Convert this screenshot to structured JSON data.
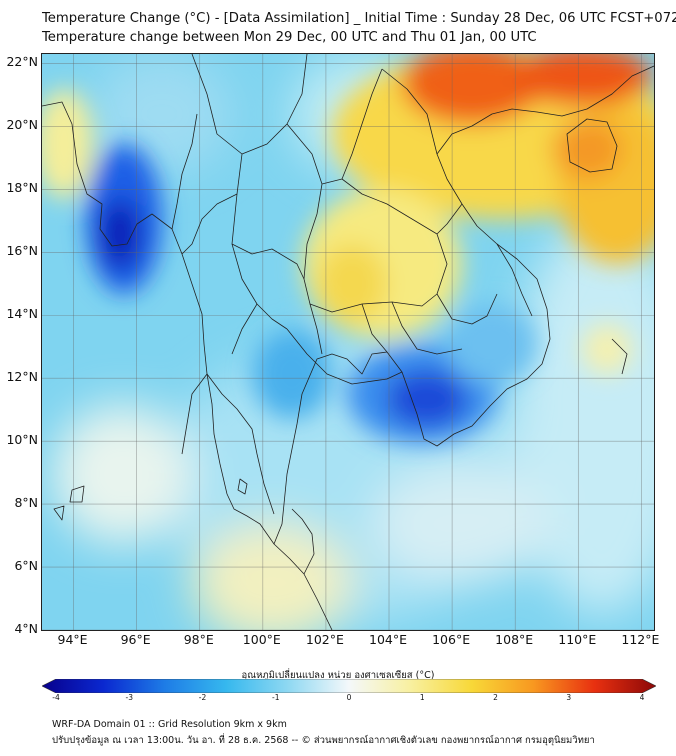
{
  "title_line1": "Temperature Change (°C) - [Data Assimilation] _ Initial Time : Sunday 28 Dec, 06 UTC FCST+072",
  "title_line2": "Temperature change between Mon 29 Dec, 00 UTC and Thu 01 Jan, 00 UTC",
  "map": {
    "lat_labels": [
      "22°N",
      "20°N",
      "18°N",
      "16°N",
      "14°N",
      "12°N",
      "10°N",
      "8°N",
      "6°N",
      "4°N"
    ],
    "lon_labels": [
      "94°E",
      "96°E",
      "98°E",
      "100°E",
      "102°E",
      "104°E",
      "106°E",
      "108°E",
      "110°E",
      "112°E"
    ],
    "lat_range": [
      4,
      22.3
    ],
    "lon_range": [
      93,
      112.4
    ],
    "field_units": "°C",
    "cold_centers": [
      {
        "lon": 95.2,
        "lat": 16.9,
        "value": -3.2
      },
      {
        "lon": 104.8,
        "lat": 11.3,
        "value": -3.0
      }
    ],
    "warm_centers": [
      {
        "lon": 106.5,
        "lat": 21.8,
        "value": 3.0
      },
      {
        "lon": 110.8,
        "lat": 21.8,
        "value": 3.0
      },
      {
        "lon": 110.0,
        "lat": 19.2,
        "value": 2.5
      },
      {
        "lon": 102.3,
        "lat": 16.5,
        "value": 1.5
      },
      {
        "lon": 101.8,
        "lat": 14.8,
        "value": 2.0
      }
    ]
  },
  "colorbar": {
    "title": "อุณหภูมิเปลี่ยนแปลง หน่วย องศาเซลเซียส (°C)",
    "ticks": [
      "-4",
      "-3",
      "-2",
      "-1",
      "0",
      "1",
      "2",
      "3",
      "4"
    ],
    "range": [
      -4,
      4
    ],
    "colors": [
      "#08008c",
      "#0a28d0",
      "#1e7ce6",
      "#36b8ee",
      "#8ed8f2",
      "#f4f8fa",
      "#f8f0a0",
      "#f8d838",
      "#f89820",
      "#e83010",
      "#8c0808"
    ]
  },
  "footer_line1": "WRF-DA Domain 01 :: Grid Resolution 9km x 9km",
  "footer_line2": "ปรับปรุงข้อมูล ณ เวลา 13:00น. วัน อา. ที่ 28 ธ.ค. 2568 -- © ส่วนพยากรณ์อากาศเชิงตัวเลข กองพยากรณ์อากาศ กรมอุตุนิยมวิทยา"
}
